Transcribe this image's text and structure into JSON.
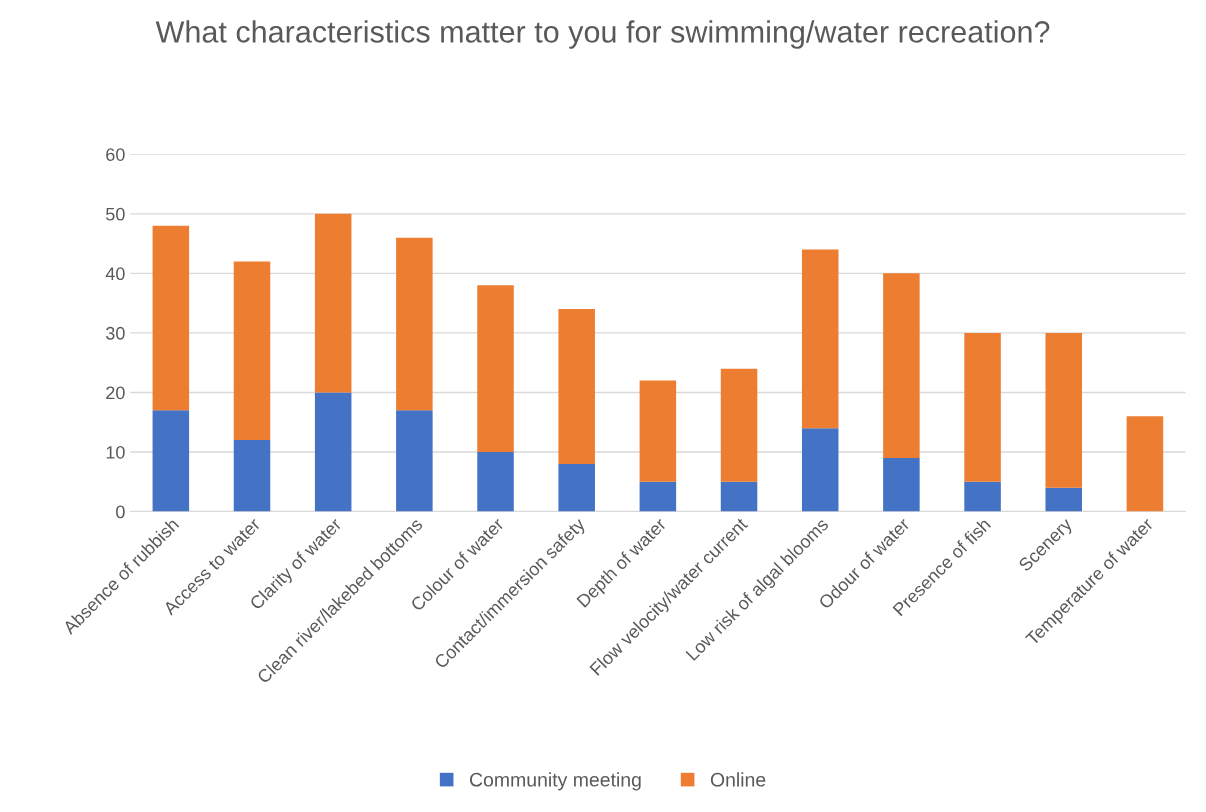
{
  "chart_data": {
    "type": "bar",
    "title": "What characteristics matter to you for swimming/water recreation?",
    "categories": [
      "Absence of rubbish",
      "Access to water",
      "Clarity of water",
      "Clean river/lakebed bottoms",
      "Colour of water",
      "Contact/immersion safety",
      "Depth of water",
      "Flow velocity/water current",
      "Low risk of algal blooms",
      "Odour of water",
      "Presence of fish",
      "Scenery",
      "Temperature of water"
    ],
    "series": [
      {
        "name": "Community meeting",
        "color": "#4472c4",
        "values": [
          17,
          12,
          20,
          17,
          10,
          8,
          5,
          5,
          14,
          9,
          5,
          4,
          0
        ]
      },
      {
        "name": "Online",
        "color": "#ed7d31",
        "values": [
          31,
          30,
          30,
          29,
          28,
          26,
          17,
          19,
          30,
          31,
          25,
          26,
          16
        ]
      }
    ],
    "stacked": true,
    "ylim": [
      0,
      60
    ],
    "yticks": [
      0,
      10,
      20,
      30,
      40,
      50,
      60
    ],
    "grid": "y",
    "legend": "bottom"
  }
}
